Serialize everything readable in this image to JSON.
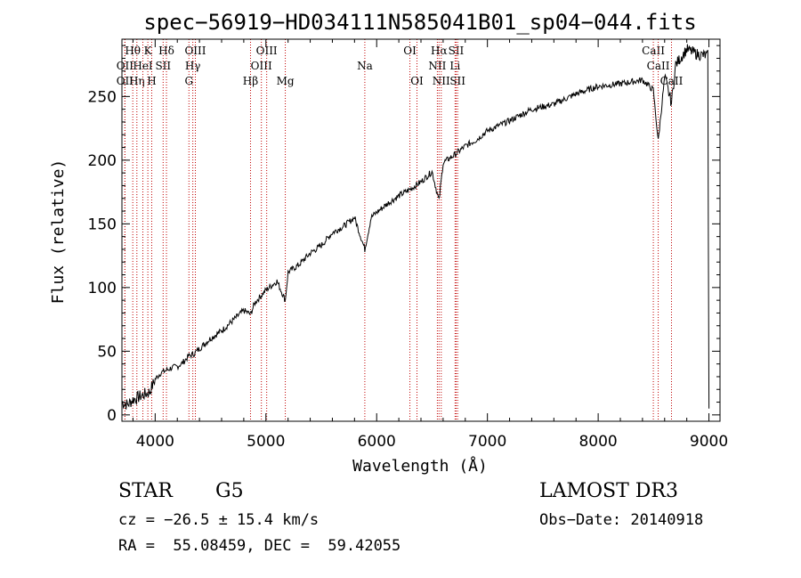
{
  "chart_data": {
    "type": "line",
    "title": "spec−56919−HD034111N585041B01_sp04−044.fits",
    "xlabel": "Wavelength (Å)",
    "ylabel": "Flux (relative)",
    "xlim": [
      3700,
      9100
    ],
    "ylim": [
      -5,
      295
    ],
    "x_ticks": [
      4000,
      5000,
      6000,
      7000,
      8000,
      9000
    ],
    "y_ticks": [
      0,
      50,
      100,
      150,
      200,
      250
    ],
    "series": [
      {
        "name": "spectrum",
        "x": [
          3700,
          3750,
          3800,
          3850,
          3900,
          3950,
          4000,
          4050,
          4100,
          4150,
          4200,
          4250,
          4300,
          4350,
          4400,
          4500,
          4600,
          4700,
          4800,
          4861,
          4900,
          5000,
          5100,
          5175,
          5200,
          5300,
          5400,
          5500,
          5600,
          5700,
          5800,
          5893,
          5950,
          6000,
          6100,
          6200,
          6300,
          6400,
          6500,
          6563,
          6600,
          6700,
          6800,
          6900,
          7000,
          7200,
          7400,
          7600,
          7800,
          8000,
          8200,
          8400,
          8498,
          8542,
          8600,
          8662,
          8700,
          8800,
          8900,
          8990,
          9000
        ],
        "y": [
          10,
          8,
          12,
          14,
          16,
          18,
          28,
          33,
          35,
          37,
          38,
          41,
          46,
          48,
          52,
          60,
          66,
          74,
          82,
          79,
          88,
          98,
          105,
          90,
          112,
          118,
          127,
          133,
          143,
          148,
          155,
          130,
          155,
          159,
          166,
          172,
          177,
          183,
          191,
          168,
          198,
          204,
          211,
          216,
          223,
          231,
          240,
          244,
          252,
          258,
          260,
          263,
          255,
          215,
          265,
          245,
          275,
          287,
          283,
          282,
          5
        ]
      }
    ],
    "line_markers": [
      {
        "name": "OII",
        "x": 3727,
        "row": 2
      },
      {
        "name": "Hθ",
        "x": 3798,
        "row": 1
      },
      {
        "name": "OII",
        "x": 3727,
        "row": 3
      },
      {
        "name": "Hη",
        "x": 3835,
        "row": 3
      },
      {
        "name": "K",
        "x": 3934,
        "row": 1
      },
      {
        "name": "H",
        "x": 3969,
        "row": 3
      },
      {
        "name": "HeI",
        "x": 3889,
        "row": 2
      },
      {
        "name": "SII",
        "x": 4072,
        "row": 2
      },
      {
        "name": "Hδ",
        "x": 4102,
        "row": 1
      },
      {
        "name": "G",
        "x": 4305,
        "row": 3
      },
      {
        "name": "Hγ",
        "x": 4340,
        "row": 2
      },
      {
        "name": "OIII",
        "x": 4363,
        "row": 1
      },
      {
        "name": "Hβ",
        "x": 4861,
        "row": 3
      },
      {
        "name": "OIII",
        "x": 4959,
        "row": 2
      },
      {
        "name": "OIII",
        "x": 5007,
        "row": 1
      },
      {
        "name": "Mg",
        "x": 5175,
        "row": 3
      },
      {
        "name": "Na",
        "x": 5893,
        "row": 2
      },
      {
        "name": "OI",
        "x": 6300,
        "row": 1
      },
      {
        "name": "OI",
        "x": 6364,
        "row": 3
      },
      {
        "name": "NII",
        "x": 6548,
        "row": 2
      },
      {
        "name": "Hα",
        "x": 6563,
        "row": 1
      },
      {
        "name": "NII",
        "x": 6583,
        "row": 3
      },
      {
        "name": "SII",
        "x": 6717,
        "row": 1
      },
      {
        "name": "Li",
        "x": 6708,
        "row": 2
      },
      {
        "name": "SII",
        "x": 6731,
        "row": 3
      },
      {
        "name": "CaII",
        "x": 8498,
        "row": 1
      },
      {
        "name": "CaII",
        "x": 8542,
        "row": 2
      },
      {
        "name": "CaII",
        "x": 8662,
        "row": 3
      }
    ]
  },
  "info": {
    "object_type": "STAR",
    "subclass": "G5",
    "survey": "LAMOST DR3",
    "cz": "cz = −26.5 ± 15.4 km/s",
    "obs_date": "Obs−Date: 20140918",
    "coords": "RA =  55.08459, DEC =  59.42055"
  }
}
